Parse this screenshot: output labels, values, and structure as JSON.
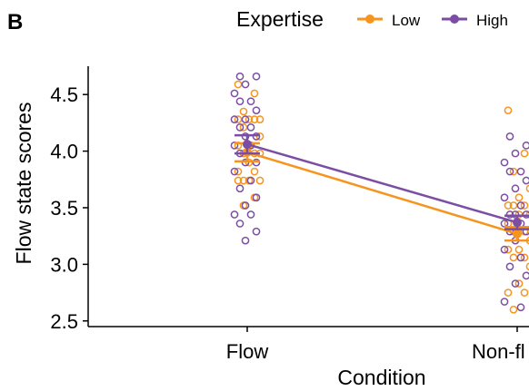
{
  "panel_label": "B",
  "chart_data": {
    "type": "scatter",
    "xlabel": "Condition",
    "ylabel": "Flow state scores",
    "categories": [
      "Flow",
      "Non-fl"
    ],
    "ylim": [
      2.45,
      4.75
    ],
    "yticks": [
      "2.5",
      "3.0",
      "3.5",
      "4.0",
      "4.5"
    ],
    "legend": {
      "title": "Expertise",
      "placement": "top"
    },
    "grid": false,
    "series": [
      {
        "name": "Low",
        "color": "#f7941d",
        "means": [
          3.99,
          3.27
        ],
        "errors": [
          0.08,
          0.06
        ],
        "points": [
          [
            [
              4.59,
              4.51,
              4.35,
              4.28,
              4.28,
              4.28,
              4.28,
              4.21,
              4.13,
              4.05,
              4.05,
              3.98,
              3.98,
              3.98,
              3.9,
              3.82,
              3.82,
              3.74,
              3.74,
              3.74,
              3.74,
              3.59,
              3.52
            ]
          ],
          [
            [
              4.36,
              3.98,
              3.82,
              3.67,
              3.59,
              3.52,
              3.52,
              3.52,
              3.44,
              3.44,
              3.36,
              3.29,
              3.29,
              3.21,
              3.13,
              3.13,
              3.06,
              3.06,
              2.98,
              2.83,
              2.75,
              2.75,
              2.6
            ]
          ]
        ]
      },
      {
        "name": "High",
        "color": "#7b4ea3",
        "means": [
          4.06,
          3.37
        ],
        "errors": [
          0.08,
          0.06
        ],
        "points": [
          [
            [
              4.66,
              4.66,
              4.59,
              4.51,
              4.44,
              4.44,
              4.36,
              4.28,
              4.28,
              4.21,
              4.21,
              4.13,
              4.13,
              4.05,
              4.05,
              3.98,
              3.9,
              3.9,
              3.82,
              3.74,
              3.67,
              3.59,
              3.52,
              3.44,
              3.44,
              3.36,
              3.29,
              3.21
            ]
          ],
          [
            [
              4.13,
              4.05,
              3.98,
              3.9,
              3.82,
              3.82,
              3.74,
              3.67,
              3.59,
              3.52,
              3.44,
              3.44,
              3.44,
              3.36,
              3.36,
              3.29,
              3.29,
              3.21,
              3.13,
              3.06,
              2.98,
              2.9,
              2.83,
              2.67,
              2.62
            ]
          ]
        ]
      }
    ]
  }
}
